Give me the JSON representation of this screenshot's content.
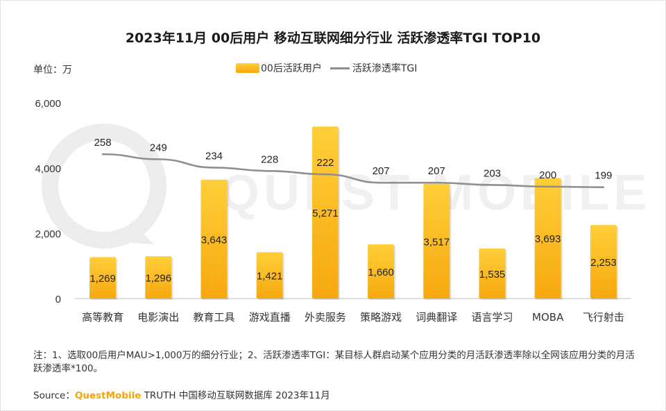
{
  "header": {
    "title": "2023年11月 00后用户 移动互联网细分行业 活跃渗透率TGI TOP10",
    "unit": "单位：万"
  },
  "legend": {
    "bar_label": "00后活跃用户",
    "line_label": "活跃渗透率TGI"
  },
  "watermark": "QUEST MOBILE",
  "chart_data": {
    "type": "bar",
    "categories": [
      "高等教育",
      "电影演出",
      "教育工具",
      "游戏直播",
      "外卖服务",
      "策略游戏",
      "词典翻译",
      "语言学习",
      "MOBA",
      "飞行射击"
    ],
    "series": [
      {
        "name": "00后活跃用户",
        "type": "bar",
        "values": [
          1269,
          1296,
          3643,
          1421,
          5271,
          1660,
          3517,
          1535,
          3693,
          2253
        ],
        "labels": [
          "1,269",
          "1,296",
          "3,643",
          "1,421",
          "5,271",
          "1,660",
          "3,517",
          "1,535",
          "3,693",
          "2,253"
        ]
      },
      {
        "name": "活跃渗透率TGI",
        "type": "line",
        "values": [
          258,
          249,
          234,
          228,
          222,
          207,
          207,
          203,
          200,
          199
        ]
      }
    ],
    "ylim": [
      0,
      6000
    ],
    "yticks": [
      "0",
      "2,000",
      "4,000",
      "6,000"
    ],
    "ytick_values": [
      0,
      2000,
      4000,
      6000
    ],
    "line_range": [
      0,
      350
    ],
    "colors": {
      "bar_top": "#ffcf3a",
      "bar_bottom": "#f7a80e",
      "line": "#8f8f8f",
      "axis": "#bfbfbf"
    }
  },
  "footer": {
    "note": "注：1、选取00后用户MAU>1,000万的细分行业；2、活跃渗透率TGI：某目标人群启动某个应用分类的月活跃渗透率除以全网该应用分类的月活跃渗透率*100。",
    "source_prefix": "Source：",
    "source_brand": "QuestMobile",
    "source_rest": " TRUTH 中国移动互联网数据库 2023年11月"
  }
}
